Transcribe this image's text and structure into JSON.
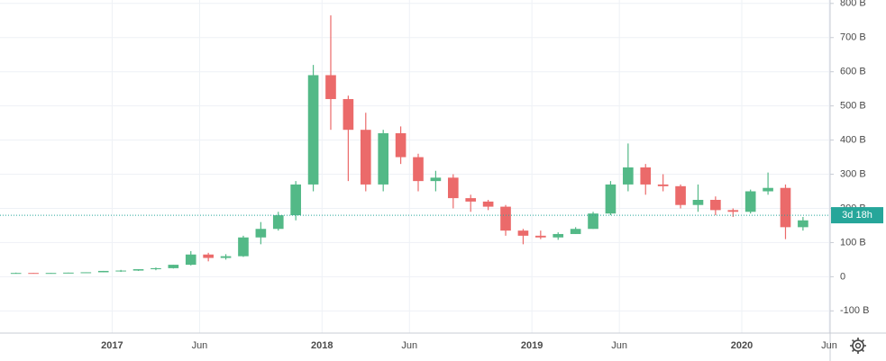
{
  "chart_data": {
    "type": "candlestick",
    "x": [
      "2016-07",
      "2016-08",
      "2016-09",
      "2016-10",
      "2016-11",
      "2016-12",
      "2017-01",
      "2017-02",
      "2017-03",
      "2017-04",
      "2017-05",
      "2017-06",
      "2017-07",
      "2017-08",
      "2017-09",
      "2017-10",
      "2017-11",
      "2017-12",
      "2018-01",
      "2018-02",
      "2018-03",
      "2018-04",
      "2018-05",
      "2018-06",
      "2018-07",
      "2018-08",
      "2018-09",
      "2018-10",
      "2018-11",
      "2018-12",
      "2019-01",
      "2019-02",
      "2019-03",
      "2019-04",
      "2019-05",
      "2019-06",
      "2019-07",
      "2019-08",
      "2019-09",
      "2019-10",
      "2019-11",
      "2019-12",
      "2020-01",
      "2020-02",
      "2020-03",
      "2020-04"
    ],
    "open": [
      10,
      11,
      10,
      11,
      12,
      13,
      17,
      18,
      22,
      25,
      35,
      65,
      55,
      60,
      115,
      140,
      180,
      270,
      590,
      520,
      430,
      270,
      420,
      350,
      280,
      290,
      230,
      220,
      205,
      135,
      120,
      115,
      125,
      140,
      185,
      270,
      320,
      270,
      265,
      210,
      225,
      195,
      190,
      250,
      260,
      145
    ],
    "high": [
      12,
      11,
      11,
      12,
      13,
      17,
      20,
      22,
      27,
      35,
      75,
      70,
      66,
      120,
      160,
      190,
      280,
      620,
      765,
      530,
      480,
      430,
      440,
      360,
      310,
      300,
      240,
      225,
      210,
      140,
      135,
      130,
      145,
      190,
      280,
      390,
      330,
      300,
      270,
      270,
      235,
      200,
      255,
      305,
      270,
      175
    ],
    "low": [
      9,
      9,
      10,
      11,
      12,
      13,
      14,
      17,
      19,
      24,
      33,
      45,
      50,
      58,
      95,
      135,
      165,
      250,
      430,
      280,
      250,
      250,
      330,
      250,
      250,
      200,
      190,
      195,
      120,
      95,
      110,
      108,
      125,
      140,
      180,
      250,
      240,
      250,
      200,
      190,
      180,
      175,
      185,
      240,
      110,
      135
    ],
    "close": [
      11,
      10,
      11,
      12,
      13,
      17,
      18,
      22,
      25,
      35,
      65,
      55,
      60,
      115,
      140,
      180,
      270,
      590,
      520,
      430,
      270,
      420,
      350,
      280,
      290,
      230,
      220,
      205,
      135,
      120,
      115,
      125,
      140,
      185,
      270,
      320,
      270,
      265,
      210,
      225,
      195,
      190,
      250,
      260,
      145,
      165
    ],
    "up_color": "#53b987",
    "down_color": "#eb6a6a",
    "xlim": [
      "2016-07",
      "2020-06"
    ],
    "xticks": [
      {
        "value": "2017-01",
        "label": "2017"
      },
      {
        "value": "2017-06",
        "label": "Jun"
      },
      {
        "value": "2018-01",
        "label": "2018"
      },
      {
        "value": "2018-06",
        "label": "Jun"
      },
      {
        "value": "2019-01",
        "label": "2019"
      },
      {
        "value": "2019-06",
        "label": "Jun"
      },
      {
        "value": "2020-01",
        "label": "2020"
      },
      {
        "value": "2020-06",
        "label": "Jun"
      }
    ],
    "ylim": [
      -165,
      810
    ],
    "yticks": [
      {
        "value": -100,
        "label": "-100 B"
      },
      0,
      {
        "value": 100,
        "label": "100 B"
      },
      {
        "value": 200,
        "label": "200 B"
      },
      {
        "value": 300,
        "label": "300 B"
      },
      {
        "value": 400,
        "label": "400 B"
      },
      {
        "value": 500,
        "label": "500 B"
      },
      {
        "value": 600,
        "label": "600 B"
      },
      {
        "value": 700,
        "label": "700 B"
      },
      {
        "value": 800,
        "label": "800 B"
      }
    ],
    "price_line": {
      "value": 180,
      "label": "3d 18h",
      "color": "#26a69a"
    },
    "grid": true
  }
}
